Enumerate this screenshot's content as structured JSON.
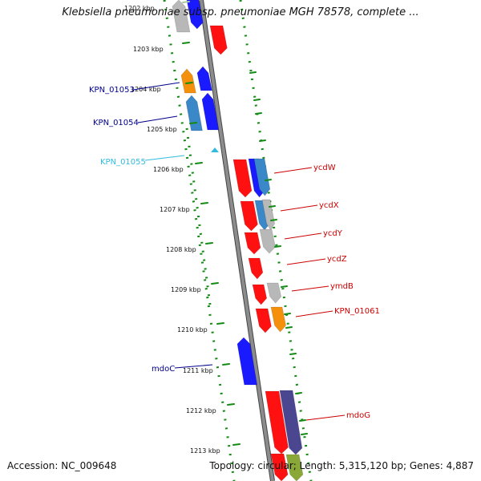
{
  "title": "Klebsiella pneumoniae subsp. pneumoniae MGH 78578, complete ...",
  "footer": {
    "accession": "Accession: NC_009648",
    "summary": "Topology: circular; Length: 5,315,120 bp; Genes: 4,887"
  },
  "colors": {
    "backbone": "#8c8c8c",
    "tick": "#138a13",
    "forward_label": "#00008b",
    "reverse_label": "#cc0000",
    "rrna_label": "#33bbdd",
    "red": "#ff1111",
    "blue": "#1a1aff",
    "steel": "#3a88c8",
    "orange": "#f5900c",
    "gray": "#b8b8b8",
    "purple": "#4a4690",
    "olive": "#8aa838",
    "cyan": "#33bbdd"
  },
  "scale": {
    "ticks": [
      "1202 kbp",
      "1203 kbp",
      "1204 kbp",
      "1205 kbp",
      "1206 kbp",
      "1207 kbp",
      "1208 kbp",
      "1209 kbp",
      "1210 kbp",
      "1211 kbp",
      "1212 kbp",
      "1213 kbp"
    ],
    "faded_ticks": [
      "1202 kbp"
    ]
  },
  "genes": [
    {
      "label": "KPN_01053",
      "color": "forward_label",
      "side": "left"
    },
    {
      "label": "KPN_01054",
      "color": "forward_label",
      "side": "left"
    },
    {
      "label": "KPN_01055",
      "color": "rrna_label",
      "side": "left"
    },
    {
      "label": "mdoC",
      "color": "forward_label",
      "side": "left"
    },
    {
      "label": "ycdW",
      "color": "reverse_label",
      "side": "right"
    },
    {
      "label": "ycdX",
      "color": "reverse_label",
      "side": "right"
    },
    {
      "label": "ycdY",
      "color": "reverse_label",
      "side": "right"
    },
    {
      "label": "ycdZ",
      "color": "reverse_label",
      "side": "right"
    },
    {
      "label": "ymdB",
      "color": "reverse_label",
      "side": "right"
    },
    {
      "label": "KPN_01061",
      "color": "reverse_label",
      "side": "right"
    },
    {
      "label": "mdoG",
      "color": "reverse_label",
      "side": "right"
    }
  ]
}
